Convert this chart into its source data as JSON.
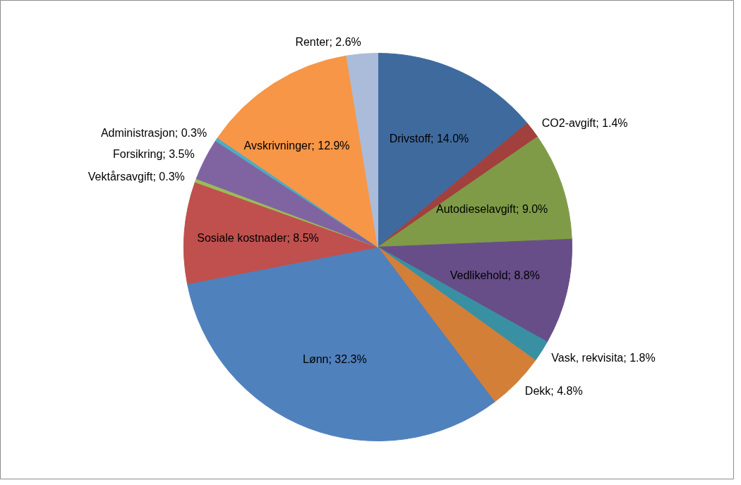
{
  "chart_data": {
    "type": "pie",
    "categories": [
      "Drivstoff",
      "CO2-avgift",
      "Autodieselavgift",
      "Vedlikehold",
      "Vask, rekvisita",
      "Dekk",
      "Lønn",
      "Sosiale kostnader",
      "Vektårsavgift",
      "Forsikring",
      "Administrasjon",
      "Avskrivninger",
      "Renter"
    ],
    "values": [
      14.0,
      1.4,
      9.0,
      8.8,
      1.8,
      4.8,
      32.3,
      8.5,
      0.3,
      3.5,
      0.3,
      12.9,
      2.6
    ],
    "value_labels": [
      "14.0%",
      "1.4%",
      "9.0%",
      "8.8%",
      "1.8%",
      "4.8%",
      "32.3%",
      "8.5%",
      "0.3%",
      "3.5%",
      "0.3%",
      "12.9%",
      "2.6%"
    ],
    "colors": [
      "#3f6a9e",
      "#a2403d",
      "#7f9b47",
      "#674e89",
      "#3990a3",
      "#d47f37",
      "#4f81bd",
      "#c0504d",
      "#9bbb59",
      "#8064a2",
      "#4bacc6",
      "#f79646",
      "#aabcd9"
    ]
  }
}
